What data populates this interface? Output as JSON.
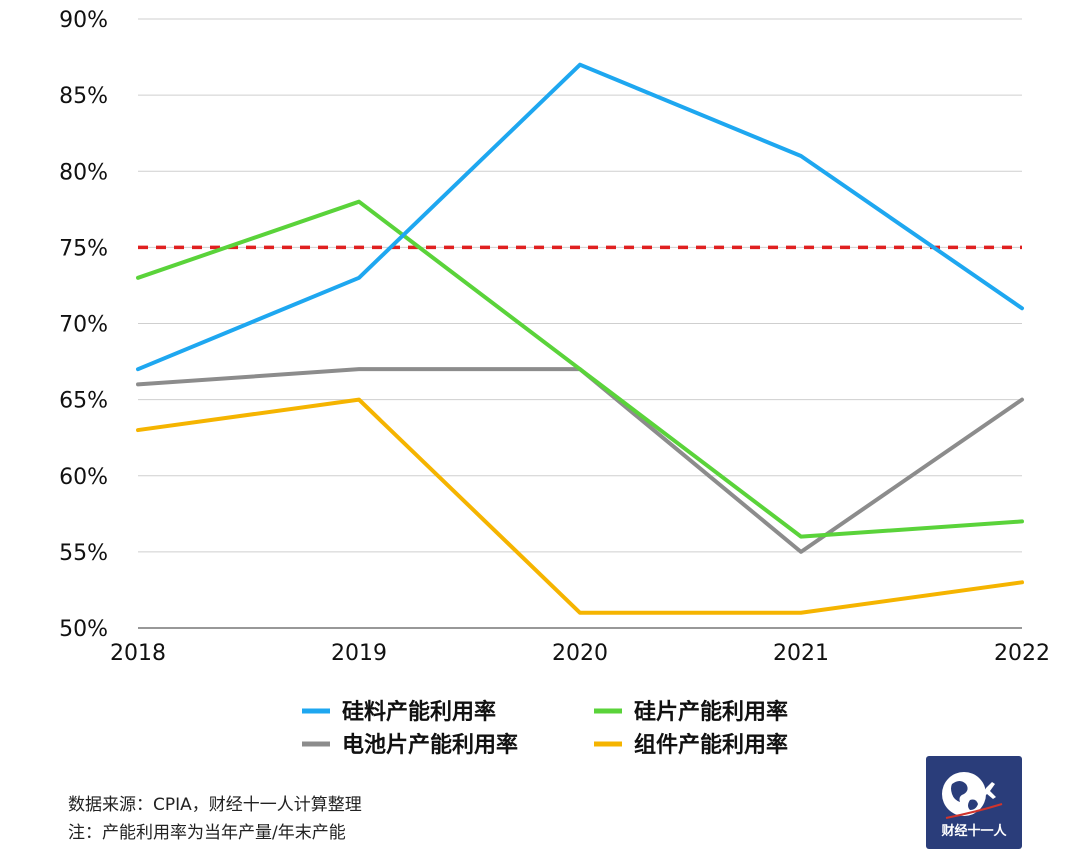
{
  "chart_data": {
    "type": "line",
    "x": [
      "2018",
      "2019",
      "2020",
      "2021",
      "2022"
    ],
    "yticks": [
      "90%",
      "85%",
      "80%",
      "75%",
      "70%",
      "65%",
      "60%",
      "55%",
      "50%"
    ],
    "ylim": [
      50,
      90
    ],
    "grid": true,
    "legend_position": "bottom",
    "series": [
      {
        "name": "硅料产能利用率",
        "values": [
          67,
          73,
          87,
          81,
          71
        ],
        "color": "#1ea7f0"
      },
      {
        "name": "硅片产能利用率",
        "values": [
          73,
          78,
          67,
          56,
          57
        ],
        "color": "#5ad33a"
      },
      {
        "name": "电池片产能利用率",
        "values": [
          66,
          67,
          67,
          55,
          65
        ],
        "color": "#8c8c8c"
      },
      {
        "name": "组件产能利用率",
        "values": [
          63,
          65,
          51,
          51,
          53
        ],
        "color": "#f5b400"
      }
    ],
    "reference_line": {
      "value": 75,
      "color": "#e02020",
      "style": "dashed"
    }
  },
  "footer": {
    "source": "数据来源：CPIA，财经十一人计算整理",
    "note": "注：产能利用率为当年产量/年末产能"
  },
  "logo": {
    "text": "财经十一人"
  }
}
